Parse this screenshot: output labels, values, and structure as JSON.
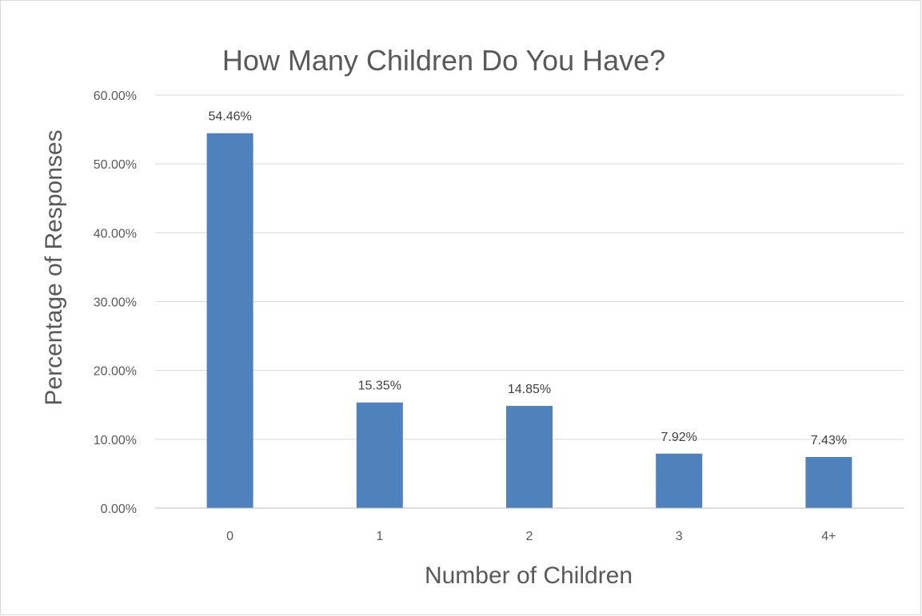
{
  "chart_data": {
    "type": "bar",
    "title": "How Many Children Do You Have?",
    "xlabel": "Number of Children",
    "ylabel": "Percentage of Responses",
    "categories": [
      "0",
      "1",
      "2",
      "3",
      "4+"
    ],
    "values": [
      54.46,
      15.35,
      14.85,
      7.92,
      7.43
    ],
    "data_labels": [
      "54.46%",
      "15.35%",
      "14.85%",
      "7.92%",
      "7.43%"
    ],
    "ylim": [
      0,
      60
    ],
    "yticks": [
      0,
      10,
      20,
      30,
      40,
      50,
      60
    ],
    "ytick_labels": [
      "0.00%",
      "10.00%",
      "20.00%",
      "30.00%",
      "40.00%",
      "50.00%",
      "60.00%"
    ],
    "grid": true,
    "legend": "none",
    "bar_color": "#4f81bd"
  }
}
